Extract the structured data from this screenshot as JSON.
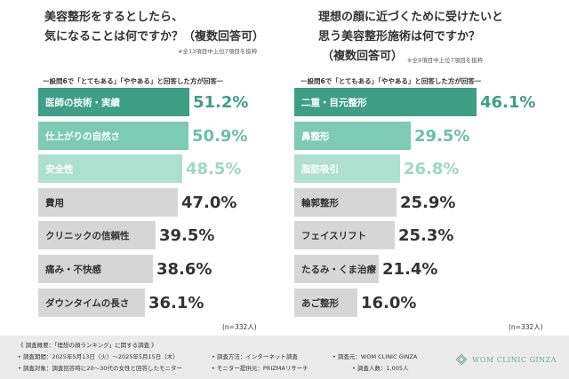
{
  "left": {
    "title_line1": "美容整形をするとしたら、",
    "title_line2": "気になることは何ですか？（複数回答可）",
    "note": "※全13項目中上位7項目を抜粋",
    "subhead": "ー設問6で「とてもある」「ややある」と回答した方が回答ー",
    "n_label": "(n=332人)"
  },
  "right": {
    "title_line1": "理想の顔に近づくために受けたいと",
    "title_line2": "思う美容整形施術は何ですか？",
    "title_line3": "（複数回答可）",
    "note": "※全9項目中上位7項目を抜粋",
    "subhead": "ー設問6で「とてもある」「ややある」と回答した方が回答ー",
    "n_label": "(n=332人)"
  },
  "chart_data": [
    {
      "type": "bar",
      "orientation": "horizontal",
      "title": "美容整形をするとしたら、気になることは何ですか？（複数回答可）",
      "categories": [
        "医師の技術・実績",
        "仕上がりの自然さ",
        "安全性",
        "費用",
        "クリニックの信頼性",
        "痛み・不快感",
        "ダウンタイムの長さ"
      ],
      "value_labels": [
        "51.2%",
        "50.9%",
        "48.5%",
        "47.0%",
        "39.5%",
        "38.6%",
        "36.1%"
      ],
      "values": [
        51.2,
        50.9,
        48.5,
        47.0,
        39.5,
        38.6,
        36.1
      ],
      "unit": "%",
      "colors": [
        "#3e9e86",
        "#7dcbb3",
        "#aee0d0",
        "#d6d6d6",
        "#d6d6d6",
        "#d6d6d6",
        "#d6d6d6"
      ],
      "value_colors": [
        "#3e9e86",
        "#6bbfa6",
        "#9fd6c4",
        "#333333",
        "#333333",
        "#333333",
        "#333333"
      ]
    },
    {
      "type": "bar",
      "orientation": "horizontal",
      "title": "理想の顔に近づくために受けたいと思う美容整形施術は何ですか？（複数回答可）",
      "categories": [
        "二重・目元整形",
        "鼻整形",
        "脂肪吸引",
        "輪郭整形",
        "フェイスリフト",
        "たるみ・くま治療",
        "あご整形"
      ],
      "value_labels": [
        "46.1%",
        "29.5%",
        "26.8%",
        "25.9%",
        "25.3%",
        "21.4%",
        "16.0%"
      ],
      "values": [
        46.1,
        29.5,
        26.8,
        25.9,
        25.3,
        21.4,
        16.0
      ],
      "unit": "%",
      "colors": [
        "#3e9e86",
        "#7dcbb3",
        "#aee0d0",
        "#d6d6d6",
        "#d6d6d6",
        "#d6d6d6",
        "#d6d6d6"
      ],
      "value_colors": [
        "#3e9e86",
        "#6bbfa6",
        "#9fd6c4",
        "#333333",
        "#333333",
        "#333333",
        "#333333"
      ]
    }
  ],
  "footer": {
    "line1": "《 調査概要：「理想の顔ランキング」に関する調査 》",
    "line2a": "• 調査期間：2025年5月13日（火）〜2025年5月15日（木）",
    "line2b": "• 調査方法：インターネット調査",
    "line2c": "• 調査元：WOM CLINIC GINZA",
    "line3a": "• 調査対象：調査回答時に20〜30代の女性と回答したモニター",
    "line3b": "• モニター提供元：PRIZMAリサーチ",
    "line3c": "• 調査人数：1,005人",
    "brand": "WOM CLINIC GINZA"
  }
}
